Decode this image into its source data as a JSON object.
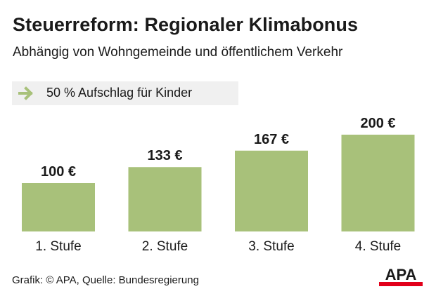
{
  "header": {
    "title": "Steuerreform: Regionaler Klimabonus",
    "subtitle": "Abhängig von Wohngemeinde und öffentlichem Verkehr"
  },
  "note": {
    "text": "50 % Aufschlag für Kinder",
    "icon": "arrow-right-icon",
    "arrow_color": "#a8c17a"
  },
  "chart_data": {
    "type": "bar",
    "categories": [
      "1. Stufe",
      "2. Stufe",
      "3. Stufe",
      "4. Stufe"
    ],
    "values": [
      100,
      133,
      167,
      200
    ],
    "value_labels": [
      "100 €",
      "133 €",
      "167 €",
      "200 €"
    ],
    "title": "",
    "xlabel": "",
    "ylabel": "",
    "ylim": [
      0,
      200
    ],
    "grid": false,
    "bar_color": "#a8c17a"
  },
  "footer": {
    "source": "Grafik: © APA, Quelle: Bundesregierung",
    "logo_text": "APA",
    "logo_color": "#e2001a"
  }
}
